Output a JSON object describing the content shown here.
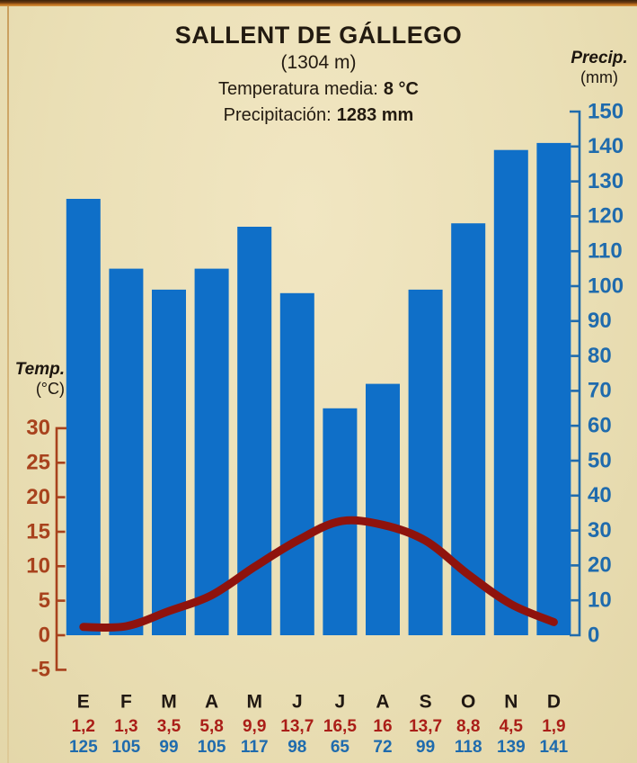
{
  "header": {
    "title": "SALLENT DE GÁLLEGO",
    "altitude": "(1304 m)",
    "temp_label": "Temperatura media:",
    "temp_value": "8 °C",
    "precip_label": "Precipitación:",
    "precip_value": "1283 mm"
  },
  "colors": {
    "background": "#eadfb5",
    "bar_blue": "#0f6fc8",
    "line_red": "#8f130d",
    "temp_axis_red": "#a8421d",
    "precip_axis_blue": "#1f6bad",
    "month_black": "#201812",
    "temp_value_red": "#aa1e18",
    "precip_value_blue": "#1f6bad"
  },
  "chart_data": {
    "type": "combo",
    "title": "SALLENT DE GÁLLEGO",
    "subtitle": "(1304 m)",
    "categories": [
      "E",
      "F",
      "M",
      "A",
      "M",
      "J",
      "J",
      "A",
      "S",
      "O",
      "N",
      "D"
    ],
    "series": [
      {
        "name": "Precipitación",
        "type": "bar",
        "unit": "mm",
        "axis": "right",
        "color": "#0f6fc8",
        "values": [
          125,
          105,
          99,
          105,
          117,
          98,
          65,
          72,
          99,
          118,
          139,
          141
        ],
        "value_labels": [
          "125",
          "105",
          "99",
          "105",
          "117",
          "98",
          "65",
          "72",
          "99",
          "118",
          "139",
          "141"
        ]
      },
      {
        "name": "Temperatura",
        "type": "line",
        "unit": "°C",
        "axis": "left",
        "color": "#8f130d",
        "values": [
          1.2,
          1.3,
          3.5,
          5.8,
          9.9,
          13.7,
          16.5,
          16,
          13.7,
          8.8,
          4.5,
          1.9
        ],
        "value_labels": [
          "1,2",
          "1,3",
          "3,5",
          "5,8",
          "9,9",
          "13,7",
          "16,5",
          "16",
          "13,7",
          "8,8",
          "4,5",
          "1,9"
        ]
      }
    ],
    "left_axis": {
      "title": "Temp.",
      "unit": "(°C)",
      "min": -5,
      "max": 30,
      "step": 5,
      "color": "#a8421d"
    },
    "right_axis": {
      "title": "Precip.",
      "unit": "(mm)",
      "min": 0,
      "max": 150,
      "step": 10,
      "color": "#1f6bad"
    },
    "legend": "none",
    "grid": "off"
  }
}
